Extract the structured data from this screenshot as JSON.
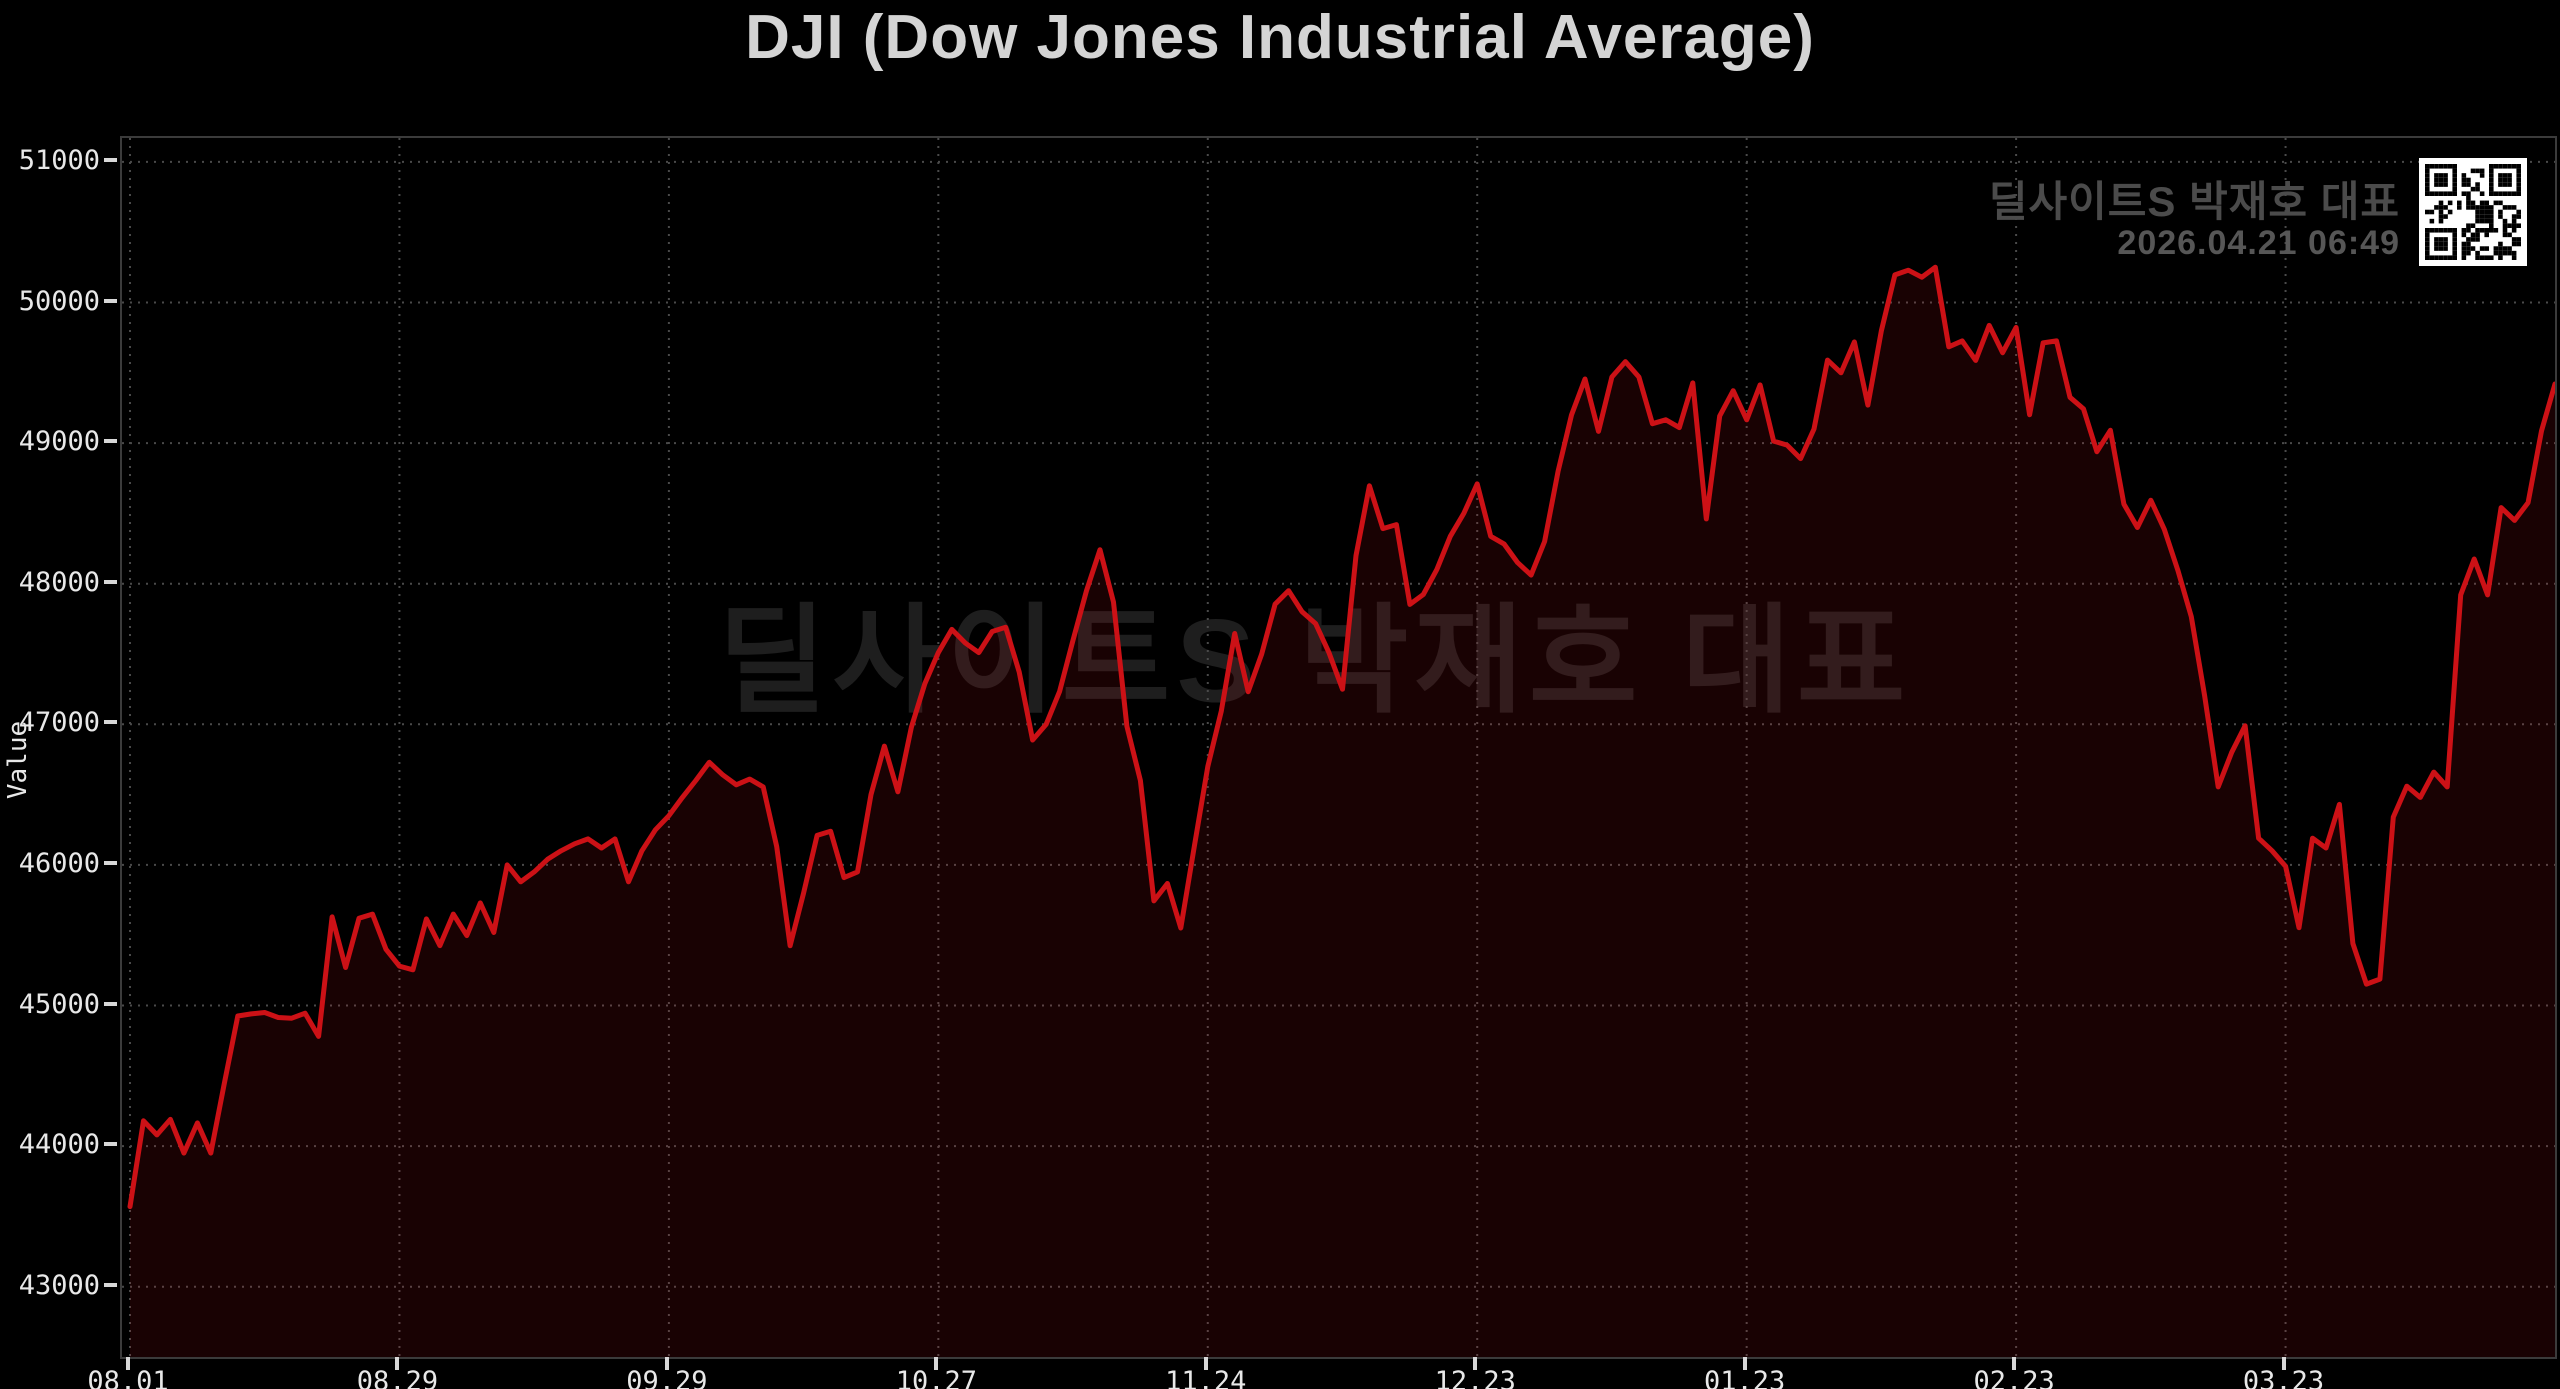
{
  "header": {
    "title": "DJI (Dow Jones Industrial Average)"
  },
  "annotations": {
    "watermark": "딜사이트S 박재호 대표",
    "byline": "딜사이트S 박재호 대표",
    "timestamp": "2026.04.21 06:49"
  },
  "icons": {
    "qr": "qr-code-icon"
  },
  "colors": {
    "background": "#000000",
    "line": "#cc1116",
    "fill": "rgba(204,17,22,0.12)",
    "grid": "#4a4a4a",
    "frame": "#3b3b3b",
    "tick_label": "#e8e8e8",
    "tick_mark": "#d8d8d8",
    "title": "#d4d4d4",
    "watermark": "#1e1e1e",
    "byline": "#4b4b4b",
    "timestamp": "#565656"
  },
  "chart_data": {
    "type": "area",
    "title": "DJI (Dow Jones Industrial Average)",
    "xlabel": "",
    "ylabel": "Value",
    "ylim": [
      42500,
      51170
    ],
    "yticks": [
      43000,
      44000,
      45000,
      46000,
      47000,
      48000,
      49000,
      50000,
      51000
    ],
    "x_tick_labels": [
      "08.01",
      "08.29",
      "09.29",
      "10.27",
      "11.24",
      "12.23",
      "01.23",
      "02.23",
      "03.23"
    ],
    "x_tick_days": [
      0,
      20,
      40,
      60,
      80,
      100,
      120,
      140,
      160
    ],
    "n_days": 181,
    "grid": true,
    "legend": "none",
    "series_name": "DJI",
    "values": [
      43570,
      44180,
      44080,
      44190,
      43950,
      44165,
      43950,
      44445,
      44925,
      44940,
      44950,
      44915,
      44910,
      44945,
      44780,
      45630,
      45270,
      45620,
      45650,
      45400,
      45280,
      45254,
      45616,
      45426,
      45650,
      45497,
      45730,
      45519,
      46000,
      45880,
      45950,
      46040,
      46100,
      46150,
      46185,
      46120,
      46185,
      45880,
      46100,
      46250,
      46350,
      46480,
      46600,
      46730,
      46640,
      46570,
      46610,
      46555,
      46130,
      45425,
      45800,
      46210,
      46240,
      45910,
      45950,
      46500,
      46845,
      46520,
      46980,
      47290,
      47510,
      47675,
      47578,
      47510,
      47660,
      47690,
      47372,
      46888,
      46999,
      47234,
      47600,
      47950,
      48242,
      47869,
      46986,
      46600,
      45744,
      45868,
      45551,
      46131,
      46700,
      47094,
      47646,
      47232,
      47500,
      47854,
      47950,
      47800,
      47716,
      47509,
      47250,
      48200,
      48696,
      48392,
      48420,
      47853,
      47923,
      48100,
      48337,
      48500,
      48710,
      48337,
      48282,
      48150,
      48061,
      48300,
      48800,
      49200,
      49456,
      49083,
      49470,
      49580,
      49470,
      49138,
      49166,
      49110,
      49428,
      48461,
      49193,
      49373,
      49166,
      49414,
      49014,
      48986,
      48890,
      49100,
      49590,
      49500,
      49720,
      49270,
      49800,
      50196,
      50230,
      50180,
      50251,
      49685,
      49727,
      49588,
      49837,
      49643,
      49823,
      49202,
      49713,
      49727,
      49326,
      49243,
      48939,
      49091,
      48566,
      48400,
      48594,
      48387,
      48097,
      47765,
      47200,
      46555,
      46800,
      46990,
      46190,
      46100,
      45990,
      45553,
      46190,
      46120,
      46430,
      45440,
      45152,
      45188,
      46340,
      46560,
      46480,
      46660,
      46555,
      47920,
      48176,
      47920,
      48541,
      48450,
      48577,
      49087,
      49420
    ]
  }
}
